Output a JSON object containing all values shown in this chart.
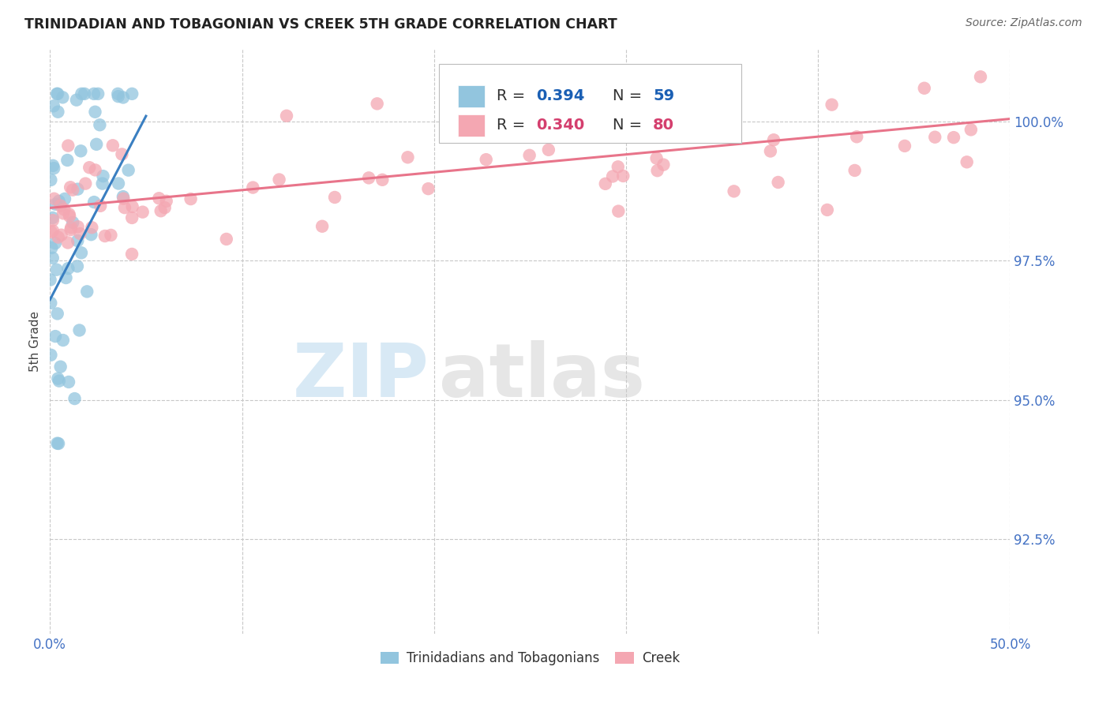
{
  "title": "TRINIDADIAN AND TOBAGONIAN VS CREEK 5TH GRADE CORRELATION CHART",
  "source": "Source: ZipAtlas.com",
  "ylabel": "5th Grade",
  "y_ticks": [
    92.5,
    95.0,
    97.5,
    100.0
  ],
  "y_tick_labels": [
    "92.5%",
    "95.0%",
    "97.5%",
    "100.0%"
  ],
  "x_range": [
    0.0,
    50.0
  ],
  "y_range": [
    90.8,
    101.3
  ],
  "R_blue": 0.394,
  "N_blue": 59,
  "R_pink": 0.34,
  "N_pink": 80,
  "color_blue": "#92c5de",
  "color_pink": "#f4a7b2",
  "line_blue": "#3a7fc1",
  "line_pink": "#e8748a",
  "legend_label_color": "#1a5fb4",
  "legend_value_color_blue": "#1a5fb4",
  "legend_value_color_pink": "#d43f6e",
  "legend_blue": "Trinidadians and Tobagonians",
  "legend_pink": "Creek",
  "watermark_zip": "ZIP",
  "watermark_atlas": "atlas",
  "blue_line_x0": 0.0,
  "blue_line_y0": 96.8,
  "blue_line_x1": 5.0,
  "blue_line_y1": 100.1,
  "pink_line_x0": 0.0,
  "pink_line_y0": 98.45,
  "pink_line_x1": 50.0,
  "pink_line_y1": 100.05
}
